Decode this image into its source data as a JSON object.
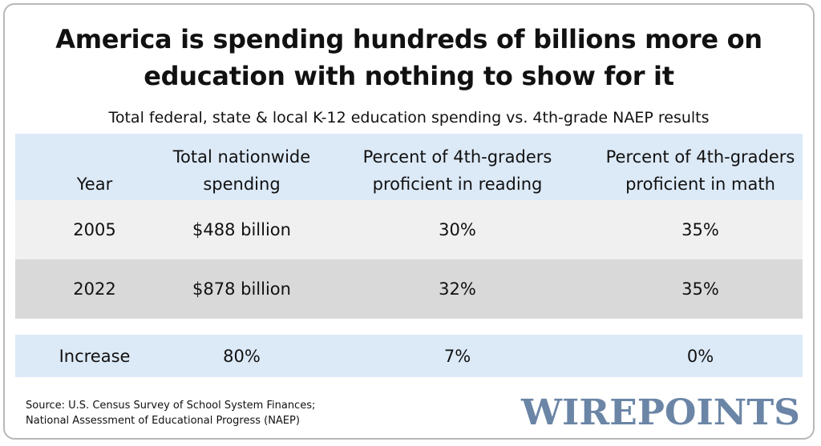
{
  "title_line1": "America is spending hundreds of billions more on",
  "title_line2": "education with nothing to show for it",
  "subtitle": "Total federal, state & local K-12 education spending vs. 4th-grade NAEP results",
  "chart_data": {
    "type": "table",
    "title": "America is spending hundreds of billions more on education with nothing to show for it",
    "subtitle": "Total federal, state & local K-12 education spending vs. 4th-grade NAEP results",
    "columns": [
      {
        "line1": "",
        "line2": "Year"
      },
      {
        "line1": "Total nationwide",
        "line2": "spending"
      },
      {
        "line1": "Percent of 4th-graders",
        "line2": "proficient in reading"
      },
      {
        "line1": "Percent of 4th-graders",
        "line2": "proficient in math"
      }
    ],
    "rows": [
      [
        "2005",
        "$488 billion",
        "30%",
        "35%"
      ],
      [
        "2022",
        "$878 billion",
        "32%",
        "35%"
      ]
    ],
    "summary_row": [
      "Increase",
      "80%",
      "7%",
      "0%"
    ]
  },
  "source_line1": "Source: U.S. Census Survey of School System Finances;",
  "source_line2": "National Assessment of Educational Progress (NAEP)",
  "logo_text": "WIREPOINTS",
  "colors": {
    "header_band": "#dce9f7",
    "row_light": "#f0f0f0",
    "row_dark": "#d9d9d9",
    "logo": "#6b85a6"
  }
}
